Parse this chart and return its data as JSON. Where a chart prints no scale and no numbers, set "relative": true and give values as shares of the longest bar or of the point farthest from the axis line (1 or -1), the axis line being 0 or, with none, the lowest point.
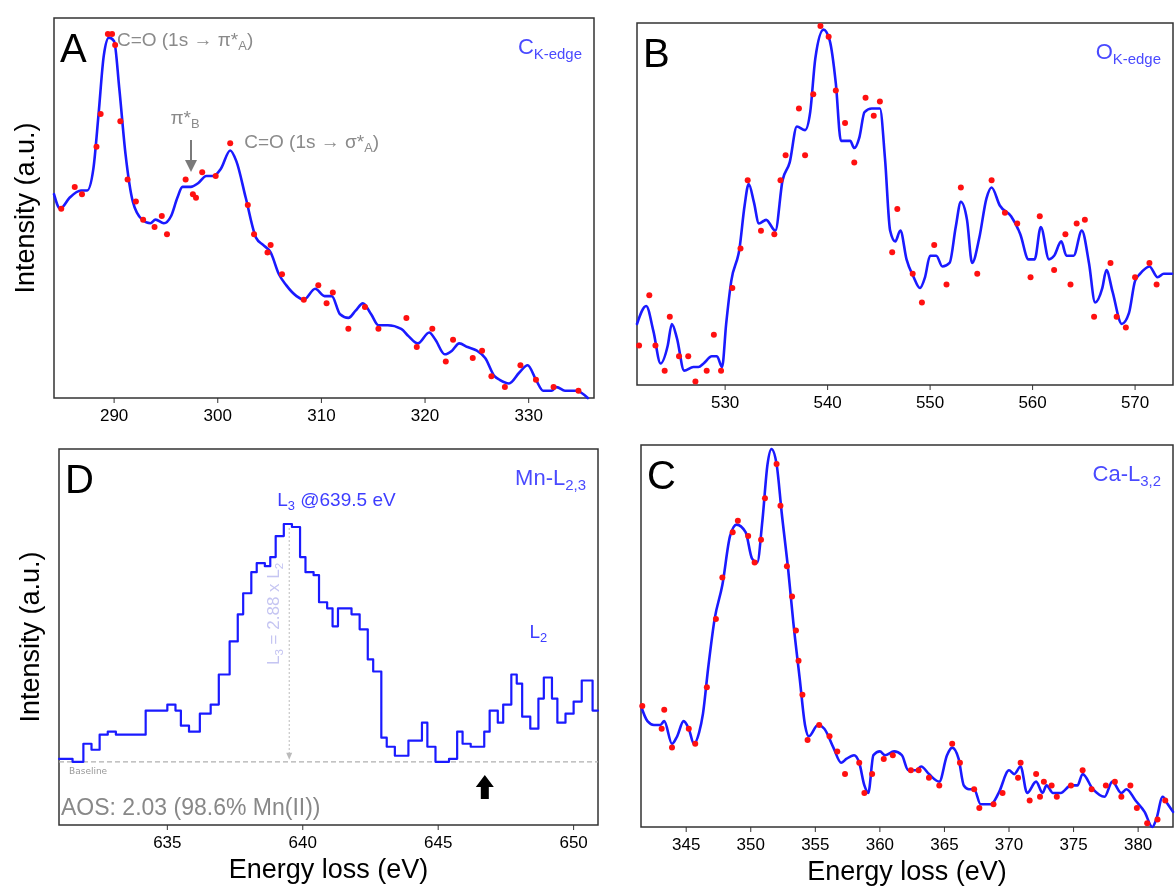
{
  "chart_data": [
    {
      "type": "line",
      "ylabel": "Intensity (a.u.)",
      "relative": true,
      "xlim": [
        284.2,
        336.3
      ],
      "xticks": [
        290,
        300,
        310,
        320,
        330
      ],
      "tick_labels": "x",
      "annotations": [
        "A",
        "C$_{K-edge}$",
        {
          "text": "C=O (1s → π*$_{A}$)",
          "x": 289.5,
          "y": 1.0
        },
        "π*$_{B}$",
        {
          "text": "C=O (1s → σ*$_{A}$)",
          "x": 301.2,
          "y": 0.68
        }
      ],
      "series": [
        {
          "type": "line",
          "color": "#1a1aff",
          "x": [
            284.2,
            284.8,
            285.7,
            286.8,
            287.4,
            288.0,
            288.5,
            289.0,
            289.5,
            290.0,
            290.5,
            291.1,
            291.8,
            292.7,
            293.5,
            294.0,
            294.8,
            295.5,
            296.1,
            296.6,
            297.4,
            298.1,
            298.9,
            299.6,
            300.3,
            301.2,
            301.8,
            302.7,
            303.7,
            304.4,
            305.1,
            305.9,
            306.6,
            307.6,
            308.3,
            309.4,
            310.3,
            311.0,
            311.8,
            312.6,
            313.3,
            314.0,
            314.8,
            315.5,
            316.4,
            317.7,
            318.4,
            319.3,
            320.4,
            321.0,
            321.9,
            322.6,
            323.3,
            324.1,
            325.0,
            325.8,
            326.7,
            327.2,
            328.1,
            329.1,
            329.9,
            330.7,
            331.4,
            332.2,
            332.7,
            333.5,
            334.6,
            335.7
          ],
          "values": [
            0.56,
            0.52,
            0.55,
            0.57,
            0.57,
            0.63,
            0.78,
            0.94,
            0.99,
            0.98,
            0.85,
            0.67,
            0.54,
            0.49,
            0.48,
            0.49,
            0.48,
            0.5,
            0.55,
            0.58,
            0.58,
            0.59,
            0.61,
            0.61,
            0.63,
            0.68,
            0.65,
            0.55,
            0.44,
            0.42,
            0.4,
            0.34,
            0.31,
            0.28,
            0.27,
            0.3,
            0.28,
            0.28,
            0.23,
            0.22,
            0.24,
            0.26,
            0.23,
            0.2,
            0.2,
            0.19,
            0.17,
            0.15,
            0.18,
            0.16,
            0.12,
            0.13,
            0.15,
            0.14,
            0.13,
            0.11,
            0.06,
            0.05,
            0.04,
            0.07,
            0.09,
            0.05,
            0.02,
            0.02,
            0.03,
            0.02,
            0.02,
            0
          ]
        },
        {
          "type": "scatter",
          "marker": "circle",
          "color": "#ff1010",
          "x": [
            284.9,
            286.2,
            286.9,
            288.3,
            288.7,
            289.4,
            289.8,
            290.1,
            290.6,
            291.3,
            292.1,
            292.8,
            293.9,
            294.6,
            295.1,
            296.9,
            297.6,
            297.9,
            298.5,
            299.8,
            301.2,
            302.9,
            303.5,
            304.8,
            305.1,
            306.2,
            308.3,
            309.7,
            310.5,
            311.1,
            312.6,
            314.2,
            315.5,
            318.2,
            319.2,
            320.7,
            322.0,
            322.7,
            324.6,
            325.5,
            326.4,
            327.7,
            329.2,
            330.7,
            332.4,
            334.8
          ],
          "values": [
            0.52,
            0.58,
            0.56,
            0.69,
            0.78,
            1.0,
            1.0,
            0.97,
            0.76,
            0.6,
            0.54,
            0.49,
            0.47,
            0.5,
            0.45,
            0.6,
            0.56,
            0.55,
            0.62,
            0.61,
            0.7,
            0.53,
            0.45,
            0.4,
            0.42,
            0.34,
            0.27,
            0.31,
            0.26,
            0.29,
            0.19,
            0.25,
            0.19,
            0.22,
            0.14,
            0.19,
            0.1,
            0.16,
            0.11,
            0.13,
            0.06,
            0.03,
            0.09,
            0.05,
            0.03,
            0.02
          ]
        }
      ]
    },
    {
      "type": "line",
      "relative": true,
      "xlim": [
        521.4,
        573.7
      ],
      "xticks": [
        530,
        540,
        550,
        560,
        570
      ],
      "tick_labels": "x",
      "annotations": [
        "B",
        "O$_{K-edge}$"
      ],
      "series": [
        {
          "type": "line",
          "color": "#1a1aff",
          "x": [
            521.4,
            522.3,
            523.0,
            523.7,
            524.4,
            524.8,
            525.3,
            526.0,
            526.9,
            527.4,
            527.9,
            528.7,
            529.2,
            529.7,
            530.1,
            530.6,
            531.4,
            531.9,
            532.3,
            532.8,
            533.3,
            534.0,
            534.9,
            535.6,
            536.3,
            537.0,
            537.8,
            538.3,
            538.8,
            539.6,
            540.2,
            540.8,
            541.3,
            542.2,
            542.6,
            543.1,
            543.6,
            544.3,
            545.1,
            545.6,
            546.1,
            546.6,
            547.1,
            547.7,
            548.4,
            549.0,
            549.5,
            550.0,
            550.6,
            551.2,
            551.9,
            552.5,
            553.0,
            553.6,
            554.1,
            554.8,
            555.5,
            556.0,
            556.8,
            557.9,
            558.8,
            559.6,
            560.2,
            560.8,
            561.6,
            562.1,
            562.8,
            563.3,
            564.0,
            564.8,
            565.5,
            566.1,
            566.8,
            567.2,
            567.8,
            568.7,
            569.4,
            570.0,
            570.5,
            571.4,
            572.2,
            572.8,
            573.6
          ],
          "values": [
            0.17,
            0.22,
            0.15,
            0.06,
            0.11,
            0.17,
            0.13,
            0.04,
            0.05,
            0.05,
            0.06,
            0.08,
            0.08,
            0.05,
            0.17,
            0.29,
            0.38,
            0.5,
            0.56,
            0.51,
            0.45,
            0.46,
            0.43,
            0.57,
            0.62,
            0.72,
            0.71,
            0.76,
            0.91,
            0.99,
            0.96,
            0.84,
            0.68,
            0.68,
            0.66,
            0.69,
            0.76,
            0.77,
            0.77,
            0.63,
            0.43,
            0.4,
            0.43,
            0.35,
            0.3,
            0.27,
            0.3,
            0.36,
            0.36,
            0.33,
            0.34,
            0.44,
            0.51,
            0.46,
            0.34,
            0.41,
            0.52,
            0.55,
            0.5,
            0.47,
            0.42,
            0.35,
            0.35,
            0.44,
            0.35,
            0.36,
            0.4,
            0.36,
            0.36,
            0.43,
            0.34,
            0.23,
            0.27,
            0.32,
            0.26,
            0.17,
            0.2,
            0.29,
            0.31,
            0.33,
            0.3,
            0.31,
            0.31
          ]
        },
        {
          "type": "scatter",
          "marker": "circle",
          "color": "#ff1010",
          "x": [
            521.6,
            522.6,
            523.2,
            524.1,
            524.6,
            525.5,
            526.4,
            527.1,
            528.2,
            528.9,
            529.6,
            530.7,
            531.5,
            532.2,
            533.5,
            534.8,
            535.4,
            535.9,
            537.2,
            537.8,
            538.6,
            539.3,
            540.1,
            540.8,
            541.7,
            542.6,
            543.7,
            544.5,
            545.1,
            546.3,
            546.8,
            548.3,
            549.2,
            550.4,
            551.6,
            553.0,
            554.6,
            556.0,
            557.3,
            558.5,
            559.8,
            560.7,
            562.1,
            563.2,
            563.7,
            564.3,
            565.1,
            566.0,
            567.6,
            568.2,
            569.1,
            570.0,
            571.4,
            572.1
          ],
          "values": [
            0.11,
            0.25,
            0.11,
            0.04,
            0.19,
            0.08,
            0.08,
            0.01,
            0.04,
            0.14,
            0.04,
            0.27,
            0.38,
            0.57,
            0.43,
            0.42,
            0.57,
            0.64,
            0.77,
            0.64,
            0.81,
            1.0,
            0.97,
            0.82,
            0.73,
            0.62,
            0.8,
            0.75,
            0.79,
            0.37,
            0.49,
            0.31,
            0.23,
            0.39,
            0.28,
            0.55,
            0.31,
            0.57,
            0.48,
            0.45,
            0.3,
            0.47,
            0.32,
            0.42,
            0.28,
            0.45,
            0.46,
            0.19,
            0.34,
            0.19,
            0.16,
            0.3,
            0.34,
            0.28
          ]
        }
      ]
    },
    {
      "type": "step",
      "xlabel": "Energy loss (eV)",
      "ylabel": "Intensity (a.u.)",
      "relative": true,
      "xlim": [
        631.0,
        650.9
      ],
      "xticks": [
        635,
        640,
        645,
        650
      ],
      "tick_labels": "x",
      "ref_lines": [
        {
          "axis": "y",
          "value": 0.21,
          "label": "Baseline",
          "color": "#b0b0b0",
          "line_style": "dashed"
        }
      ],
      "annotations": [
        "D",
        "Mn-L$_{2,3}$",
        {
          "text": "L$_{3}$ @639.5 eV",
          "x": 639.5,
          "y": 1.0
        },
        "L$_{3}$ = 2.88 x L$_{2}$",
        {
          "text": "L$_{2}$",
          "x": 648.7,
          "y": 0.49
        },
        "AOS: 2.03 (98.6% Mn(II))"
      ],
      "series": [
        {
          "type": "step",
          "color": "#1a1aff",
          "x": [
            631.0,
            631.5,
            631.9,
            632.2,
            632.5,
            632.8,
            633.1,
            633.5,
            633.8,
            634.2,
            634.6,
            634.8,
            635.0,
            635.3,
            635.5,
            635.8,
            636.2,
            636.6,
            636.9,
            637.3,
            637.6,
            637.8,
            638.1,
            638.3,
            638.6,
            638.8,
            639.0,
            639.3,
            639.6,
            639.9,
            640.1,
            640.4,
            640.6,
            640.9,
            641.1,
            641.3,
            641.8,
            642.1,
            642.4,
            642.6,
            642.9,
            643.1,
            643.4,
            643.9,
            644.4,
            644.6,
            644.9,
            645.4,
            645.7,
            645.9,
            646.2,
            646.7,
            646.9,
            647.2,
            647.4,
            647.7,
            647.9,
            648.1,
            648.4,
            648.7,
            648.9,
            649.2,
            649.4,
            649.7,
            650.0,
            650.3,
            650.7,
            650.9
          ],
          "values": [
            0.22,
            0.21,
            0.27,
            0.25,
            0.3,
            0.31,
            0.3,
            0.3,
            0.3,
            0.38,
            0.38,
            0.38,
            0.4,
            0.38,
            0.33,
            0.31,
            0.37,
            0.4,
            0.5,
            0.61,
            0.7,
            0.77,
            0.84,
            0.87,
            0.86,
            0.89,
            0.96,
            1.0,
            0.99,
            0.89,
            0.84,
            0.83,
            0.74,
            0.72,
            0.66,
            0.72,
            0.7,
            0.65,
            0.55,
            0.51,
            0.29,
            0.26,
            0.23,
            0.28,
            0.34,
            0.26,
            0.21,
            0.22,
            0.31,
            0.27,
            0.26,
            0.31,
            0.38,
            0.34,
            0.4,
            0.5,
            0.47,
            0.36,
            0.32,
            0.42,
            0.49,
            0.42,
            0.34,
            0.37,
            0.41,
            0.48,
            0.38,
            0.38
          ]
        }
      ]
    },
    {
      "type": "line",
      "xlabel": "Energy loss (eV)",
      "relative": true,
      "xlim": [
        341.5,
        382.7
      ],
      "xticks": [
        345,
        350,
        355,
        360,
        365,
        370,
        375,
        380
      ],
      "tick_labels": "x",
      "annotations": [
        "C",
        "Ca-L$_{3,2}$"
      ],
      "series": [
        {
          "type": "line",
          "color": "#1a1aff",
          "x": [
            341.5,
            342.0,
            342.5,
            343.0,
            343.3,
            343.9,
            344.3,
            344.8,
            345.2,
            345.6,
            346.0,
            346.3,
            346.7,
            347.2,
            347.8,
            348.4,
            348.9,
            349.6,
            350.1,
            350.5,
            350.9,
            351.3,
            351.6,
            352.0,
            352.4,
            352.9,
            353.3,
            353.8,
            354.2,
            354.5,
            355.2,
            355.7,
            356.4,
            357.0,
            357.4,
            358.0,
            358.4,
            358.8,
            359.1,
            359.5,
            360.0,
            360.4,
            361.1,
            361.7,
            362.2,
            362.8,
            363.2,
            363.8,
            364.6,
            365.2,
            365.6,
            366.1,
            366.5,
            366.9,
            367.3,
            367.8,
            368.2,
            368.6,
            369.2,
            370.0,
            370.4,
            370.9,
            371.4,
            372.1,
            372.6,
            372.9,
            373.4,
            374.0,
            374.8,
            375.3,
            375.7,
            376.5,
            377.4,
            378.0,
            378.7,
            379.1,
            379.8,
            380.5,
            381.1,
            381.4,
            381.9,
            382.3,
            382.7
          ],
          "values": [
            0.32,
            0.28,
            0.27,
            0.27,
            0.28,
            0.22,
            0.24,
            0.28,
            0.26,
            0.22,
            0.25,
            0.3,
            0.42,
            0.55,
            0.64,
            0.77,
            0.8,
            0.78,
            0.71,
            0.7,
            0.81,
            0.96,
            1.0,
            0.96,
            0.83,
            0.68,
            0.54,
            0.39,
            0.27,
            0.24,
            0.27,
            0.26,
            0.21,
            0.17,
            0.18,
            0.19,
            0.17,
            0.11,
            0.09,
            0.19,
            0.2,
            0.19,
            0.2,
            0.19,
            0.15,
            0.15,
            0.16,
            0.14,
            0.12,
            0.19,
            0.21,
            0.18,
            0.11,
            0.1,
            0.1,
            0.06,
            0.06,
            0.06,
            0.09,
            0.15,
            0.14,
            0.16,
            0.09,
            0.12,
            0.09,
            0.11,
            0.09,
            0.09,
            0.11,
            0.11,
            0.14,
            0.1,
            0.08,
            0.12,
            0.09,
            0.1,
            0.07,
            0.04,
            0,
            0.02,
            0.08,
            0.06,
            0.04
          ]
        },
        {
          "type": "scatter",
          "marker": "circle",
          "color": "#ff1010",
          "x": [
            341.6,
            343.1,
            343.3,
            343.9,
            345.2,
            345.7,
            346.6,
            347.3,
            347.8,
            348.6,
            349.0,
            349.8,
            350.3,
            350.8,
            351.1,
            352.0,
            352.3,
            352.8,
            353.2,
            353.5,
            353.7,
            354.0,
            354.4,
            355.3,
            356.1,
            356.7,
            357.3,
            358.4,
            358.8,
            359.4,
            360.3,
            361.0,
            362.4,
            363.0,
            363.8,
            364.6,
            365.6,
            366.2,
            367.3,
            367.7,
            368.8,
            369.5,
            370.7,
            370.9,
            371.6,
            372.1,
            372.4,
            372.7,
            373.3,
            373.7,
            374.8,
            375.7,
            376.4,
            377.5,
            378.2,
            378.7,
            379.4,
            379.9,
            380.7,
            381.5,
            382.1
          ],
          "values": [
            0.32,
            0.26,
            0.31,
            0.21,
            0.26,
            0.22,
            0.37,
            0.55,
            0.66,
            0.78,
            0.81,
            0.77,
            0.7,
            0.76,
            0.87,
            0.96,
            0.85,
            0.69,
            0.61,
            0.52,
            0.44,
            0.35,
            0.23,
            0.27,
            0.24,
            0.2,
            0.14,
            0.17,
            0.09,
            0.14,
            0.18,
            0.19,
            0.15,
            0.15,
            0.13,
            0.11,
            0.22,
            0.17,
            0.1,
            0.05,
            0.06,
            0.09,
            0.13,
            0.17,
            0.07,
            0.14,
            0.08,
            0.12,
            0.11,
            0.08,
            0.11,
            0.15,
            0.1,
            0.11,
            0.12,
            0.08,
            0.11,
            0.05,
            0.01,
            0.02,
            0.07
          ]
        }
      ]
    }
  ]
}
